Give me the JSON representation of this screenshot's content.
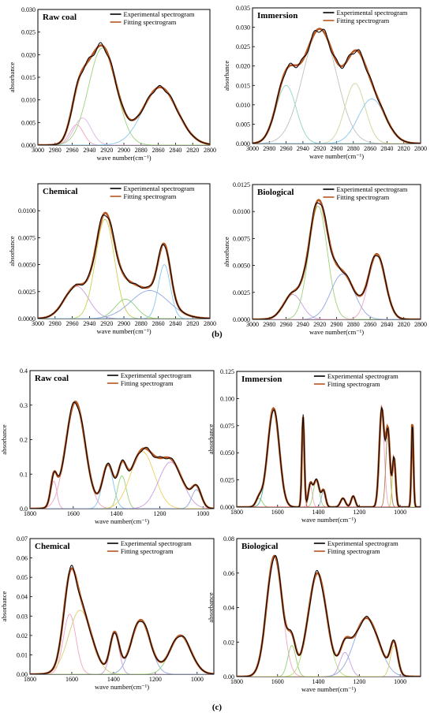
{
  "figure": {
    "section_labels": [
      "(b)",
      "(c)"
    ],
    "legend": {
      "experimental": "Experimental spectrogram",
      "fitting": "Fitting spectrogram"
    },
    "colors": {
      "experimental": "#000000",
      "fitting": "#b5541f"
    }
  },
  "chart_data": [
    {
      "type": "line",
      "title": "Raw coal",
      "xlabel": "wave number(cm⁻¹)",
      "ylabel": "absorbance",
      "xlim": [
        3000,
        2800
      ],
      "ylim": [
        0,
        0.03
      ],
      "xticks": [
        3000,
        2980,
        2960,
        2940,
        2920,
        2900,
        2880,
        2860,
        2840,
        2820,
        2800
      ],
      "yticks": [
        0.0,
        0.005,
        0.01,
        0.015,
        0.02,
        0.025,
        0.03
      ],
      "y_decimals": 3,
      "peaks": [
        {
          "center": 2955,
          "height": 0.0045,
          "width": 8,
          "color": "#f3a2c4"
        },
        {
          "center": 2948,
          "height": 0.006,
          "width": 10,
          "color": "#d8b6e6"
        },
        {
          "center": 2925,
          "height": 0.0215,
          "width": 16,
          "color": "#9cd27a"
        },
        {
          "center": 2858,
          "height": 0.0128,
          "width": 20,
          "color": "#86c6ee"
        }
      ]
    },
    {
      "type": "line",
      "title": "Immersion",
      "xlabel": "wave number(cm⁻¹)",
      "ylabel": "absorbance",
      "xlim": [
        3000,
        2800
      ],
      "ylim": [
        0,
        0.035
      ],
      "xticks": [
        3000,
        2980,
        2960,
        2940,
        2920,
        2900,
        2880,
        2860,
        2840,
        2820,
        2800
      ],
      "yticks": [
        0.0,
        0.005,
        0.01,
        0.015,
        0.02,
        0.025,
        0.03,
        0.035
      ],
      "y_decimals": 3,
      "peaks": [
        {
          "center": 2960,
          "height": 0.015,
          "width": 12,
          "color": "#8fd3c8"
        },
        {
          "center": 2920,
          "height": 0.0295,
          "width": 20,
          "color": "#c0c0c0"
        },
        {
          "center": 2878,
          "height": 0.0155,
          "width": 12,
          "color": "#c8d89a"
        },
        {
          "center": 2858,
          "height": 0.0115,
          "width": 16,
          "color": "#86c6ee"
        }
      ]
    },
    {
      "type": "line",
      "title": "Chemical",
      "xlabel": "wave number(cm⁻¹)",
      "ylabel": "absorbance",
      "xlim": [
        3000,
        2800
      ],
      "ylim": [
        0,
        0.0125
      ],
      "xticks": [
        3000,
        2980,
        2960,
        2940,
        2920,
        2900,
        2880,
        2860,
        2840,
        2820,
        2800
      ],
      "yticks": [
        0.0,
        0.0025,
        0.005,
        0.0075,
        0.01
      ],
      "y_decimals": 4,
      "peaks": [
        {
          "center": 2955,
          "height": 0.003,
          "width": 14,
          "color": "#c9a0dc"
        },
        {
          "center": 2922,
          "height": 0.0092,
          "width": 11,
          "color": "#c8d050"
        },
        {
          "center": 2898,
          "height": 0.0018,
          "width": 12,
          "color": "#8fcf7a"
        },
        {
          "center": 2870,
          "height": 0.0026,
          "width": 22,
          "color": "#8fa8e0"
        },
        {
          "center": 2853,
          "height": 0.005,
          "width": 7,
          "color": "#86c6ee"
        }
      ]
    },
    {
      "type": "line",
      "title": "Biological",
      "xlabel": "wave number(cm⁻¹)",
      "ylabel": "absorbance",
      "xlim": [
        3000,
        2800
      ],
      "ylim": [
        0,
        0.0125
      ],
      "xticks": [
        3000,
        2980,
        2960,
        2940,
        2920,
        2900,
        2880,
        2860,
        2840,
        2820,
        2800
      ],
      "yticks": [
        0.0,
        0.0025,
        0.005,
        0.0075,
        0.01,
        0.0125
      ],
      "y_decimals": 4,
      "peaks": [
        {
          "center": 2952,
          "height": 0.0023,
          "width": 11,
          "color": "#c9a0dc"
        },
        {
          "center": 2922,
          "height": 0.0105,
          "width": 11,
          "color": "#9cd27a"
        },
        {
          "center": 2893,
          "height": 0.0042,
          "width": 14,
          "color": "#8fa8e0"
        },
        {
          "center": 2852,
          "height": 0.006,
          "width": 10,
          "color": "#f3a2c4"
        }
      ]
    },
    {
      "type": "line",
      "title": "Raw coal",
      "xlabel": "wave number(cm⁻¹)",
      "ylabel": "absorbance",
      "xlim": [
        1800,
        950
      ],
      "ylim": [
        0,
        0.4
      ],
      "xticks": [
        1800,
        1600,
        1400,
        1200,
        1000
      ],
      "yticks": [
        0.0,
        0.1,
        0.2,
        0.3,
        0.4
      ],
      "y_decimals": 1,
      "peaks": [
        {
          "center": 1690,
          "height": 0.08,
          "width": 14,
          "color": "#e8a0c8"
        },
        {
          "center": 1590,
          "height": 0.31,
          "width": 45,
          "color": "#f3a2c4"
        },
        {
          "center": 1440,
          "height": 0.125,
          "width": 25,
          "color": "#86c6ee"
        },
        {
          "center": 1375,
          "height": 0.095,
          "width": 20,
          "color": "#9cd27a"
        },
        {
          "center": 1280,
          "height": 0.165,
          "width": 55,
          "color": "#f0d060"
        },
        {
          "center": 1150,
          "height": 0.135,
          "width": 55,
          "color": "#c9a0dc"
        },
        {
          "center": 1030,
          "height": 0.055,
          "width": 22,
          "color": "#8fa8e0"
        }
      ]
    },
    {
      "type": "line",
      "title": "Immersion",
      "xlabel": "wave number(cm⁻¹)",
      "ylabel": "absorbance",
      "xlim": [
        1800,
        900
      ],
      "ylim": [
        0,
        0.125
      ],
      "xticks": [
        1800,
        1600,
        1400,
        1200,
        1000
      ],
      "yticks": [
        0.0,
        0.025,
        0.05,
        0.075,
        0.1,
        0.125
      ],
      "y_decimals": 3,
      "peaks": [
        {
          "center": 1690,
          "height": 0.008,
          "width": 15,
          "color": "#8fcf7a"
        },
        {
          "center": 1620,
          "height": 0.091,
          "width": 28,
          "color": "#3fb0a0"
        },
        {
          "center": 1475,
          "height": 0.083,
          "width": 6,
          "color": "#c0392b"
        },
        {
          "center": 1440,
          "height": 0.02,
          "width": 10,
          "color": "#e8b0c8"
        },
        {
          "center": 1410,
          "height": 0.025,
          "width": 14,
          "color": "#9cd27a"
        },
        {
          "center": 1375,
          "height": 0.015,
          "width": 10,
          "color": "#8fa8e0"
        },
        {
          "center": 1280,
          "height": 0.008,
          "width": 12,
          "color": "#c9a0dc"
        },
        {
          "center": 1230,
          "height": 0.01,
          "width": 10,
          "color": "#86c6ee"
        },
        {
          "center": 1090,
          "height": 0.09,
          "width": 12,
          "color": "#f3a2c4"
        },
        {
          "center": 1060,
          "height": 0.07,
          "width": 10,
          "color": "#b08050"
        },
        {
          "center": 1030,
          "height": 0.045,
          "width": 8,
          "color": "#c8d050"
        },
        {
          "center": 940,
          "height": 0.08,
          "width": 5,
          "color": "#d04040"
        }
      ]
    },
    {
      "type": "line",
      "title": "Chemical",
      "xlabel": "wave number(cm⁻¹)",
      "ylabel": "absorbance",
      "xlim": [
        1800,
        920
      ],
      "ylim": [
        0,
        0.07
      ],
      "xticks": [
        1800,
        1600,
        1400,
        1200,
        1000
      ],
      "yticks": [
        0.0,
        0.01,
        0.02,
        0.03,
        0.04,
        0.05,
        0.06,
        0.07
      ],
      "y_decimals": 2,
      "peaks": [
        {
          "center": 1610,
          "height": 0.031,
          "width": 30,
          "color": "#f3a2c4"
        },
        {
          "center": 1560,
          "height": 0.033,
          "width": 55,
          "color": "#d8d070"
        },
        {
          "center": 1395,
          "height": 0.021,
          "width": 22,
          "color": "#c9a0dc"
        },
        {
          "center": 1270,
          "height": 0.028,
          "width": 45,
          "color": "#8fa8e0"
        },
        {
          "center": 1080,
          "height": 0.02,
          "width": 50,
          "color": "#9cd27a"
        }
      ]
    },
    {
      "type": "line",
      "title": "Biological",
      "xlabel": "wave number(cm⁻¹)",
      "ylabel": "absorbance",
      "xlim": [
        1800,
        900
      ],
      "ylim": [
        0,
        0.08
      ],
      "xticks": [
        1800,
        1600,
        1400,
        1200,
        1000
      ],
      "yticks": [
        0.0,
        0.02,
        0.04,
        0.06,
        0.08
      ],
      "y_decimals": 2,
      "peaks": [
        {
          "center": 1615,
          "height": 0.07,
          "width": 38,
          "color": "#f3a2c4"
        },
        {
          "center": 1530,
          "height": 0.018,
          "width": 20,
          "color": "#8fcf7a"
        },
        {
          "center": 1405,
          "height": 0.06,
          "width": 45,
          "color": "#b8e070"
        },
        {
          "center": 1270,
          "height": 0.014,
          "width": 25,
          "color": "#c9a0dc"
        },
        {
          "center": 1165,
          "height": 0.034,
          "width": 60,
          "color": "#8fa8e0"
        },
        {
          "center": 1030,
          "height": 0.018,
          "width": 18,
          "color": "#d8d070"
        }
      ]
    }
  ]
}
